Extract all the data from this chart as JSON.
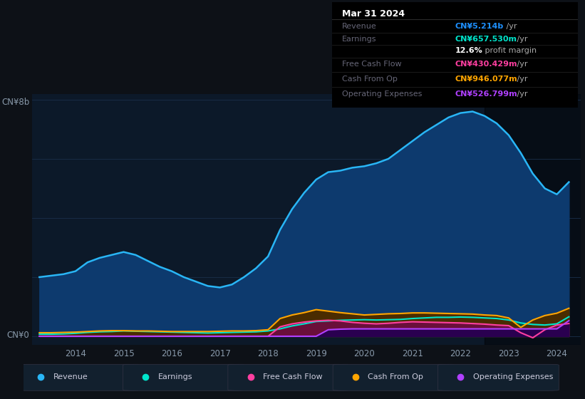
{
  "bg_color": "#0d1117",
  "plot_bg_color": "#0c1929",
  "grid_color": "#1a2f4a",
  "ylabel_text": "CN¥8b",
  "y0_label": "CN¥0",
  "info_box": {
    "title": "Mar 31 2024",
    "rows": [
      {
        "label": "Revenue",
        "value": "CN¥5.214b",
        "suffix": " /yr",
        "value_color": "#1e90ff"
      },
      {
        "label": "Earnings",
        "value": "CN¥657.530m",
        "suffix": " /yr",
        "value_color": "#00e5cc"
      },
      {
        "label": "",
        "value": "12.6%",
        "suffix": " profit margin",
        "value_color": "#ffffff"
      },
      {
        "label": "Free Cash Flow",
        "value": "CN¥430.429m",
        "suffix": " /yr",
        "value_color": "#ff3fa0"
      },
      {
        "label": "Cash From Op",
        "value": "CN¥946.077m",
        "suffix": " /yr",
        "value_color": "#ffa500"
      },
      {
        "label": "Operating Expenses",
        "value": "CN¥526.799m",
        "suffix": " /yr",
        "value_color": "#b040ff"
      }
    ]
  },
  "years": [
    2013.25,
    2013.5,
    2013.75,
    2014.0,
    2014.25,
    2014.5,
    2014.75,
    2015.0,
    2015.25,
    2015.5,
    2015.75,
    2016.0,
    2016.25,
    2016.5,
    2016.75,
    2017.0,
    2017.25,
    2017.5,
    2017.75,
    2018.0,
    2018.25,
    2018.5,
    2018.75,
    2019.0,
    2019.25,
    2019.5,
    2019.75,
    2020.0,
    2020.25,
    2020.5,
    2020.75,
    2021.0,
    2021.25,
    2021.5,
    2021.75,
    2022.0,
    2022.25,
    2022.5,
    2022.75,
    2023.0,
    2023.25,
    2023.5,
    2023.75,
    2024.0,
    2024.25
  ],
  "revenue": [
    2.0,
    2.05,
    2.1,
    2.2,
    2.5,
    2.65,
    2.75,
    2.85,
    2.75,
    2.55,
    2.35,
    2.2,
    2.0,
    1.85,
    1.7,
    1.65,
    1.75,
    2.0,
    2.3,
    2.7,
    3.6,
    4.3,
    4.85,
    5.3,
    5.55,
    5.6,
    5.7,
    5.75,
    5.85,
    6.0,
    6.3,
    6.6,
    6.9,
    7.15,
    7.4,
    7.55,
    7.6,
    7.45,
    7.2,
    6.8,
    6.2,
    5.5,
    5.0,
    4.8,
    5.214
  ],
  "earnings": [
    0.07,
    0.07,
    0.08,
    0.1,
    0.13,
    0.15,
    0.16,
    0.18,
    0.17,
    0.16,
    0.15,
    0.14,
    0.13,
    0.12,
    0.11,
    0.12,
    0.13,
    0.14,
    0.15,
    0.18,
    0.25,
    0.35,
    0.42,
    0.5,
    0.52,
    0.54,
    0.55,
    0.56,
    0.55,
    0.56,
    0.57,
    0.6,
    0.62,
    0.64,
    0.64,
    0.65,
    0.64,
    0.62,
    0.6,
    0.55,
    0.45,
    0.4,
    0.38,
    0.42,
    0.6576
  ],
  "free_cash_flow": [
    0.0,
    0.0,
    0.0,
    0.0,
    0.0,
    0.0,
    0.0,
    0.0,
    0.0,
    0.0,
    0.0,
    0.0,
    0.0,
    0.0,
    0.0,
    0.0,
    0.0,
    0.0,
    0.0,
    0.0,
    0.32,
    0.42,
    0.48,
    0.52,
    0.54,
    0.52,
    0.47,
    0.44,
    0.42,
    0.44,
    0.47,
    0.49,
    0.48,
    0.47,
    0.46,
    0.45,
    0.43,
    0.41,
    0.38,
    0.36,
    0.12,
    -0.05,
    0.22,
    0.38,
    0.4304
  ],
  "cash_from_op": [
    0.12,
    0.12,
    0.13,
    0.14,
    0.16,
    0.18,
    0.19,
    0.19,
    0.18,
    0.18,
    0.17,
    0.16,
    0.16,
    0.16,
    0.16,
    0.17,
    0.18,
    0.18,
    0.19,
    0.22,
    0.6,
    0.72,
    0.8,
    0.9,
    0.85,
    0.8,
    0.76,
    0.72,
    0.74,
    0.76,
    0.77,
    0.79,
    0.79,
    0.78,
    0.77,
    0.76,
    0.75,
    0.72,
    0.7,
    0.62,
    0.3,
    0.55,
    0.7,
    0.78,
    0.9461
  ],
  "op_expenses": [
    0.0,
    0.0,
    0.0,
    0.0,
    0.0,
    0.0,
    0.0,
    0.0,
    0.0,
    0.0,
    0.0,
    0.0,
    0.0,
    0.0,
    0.0,
    0.0,
    0.0,
    0.0,
    0.0,
    0.0,
    0.0,
    0.0,
    0.0,
    0.0,
    0.22,
    0.24,
    0.25,
    0.25,
    0.25,
    0.25,
    0.25,
    0.25,
    0.25,
    0.25,
    0.25,
    0.25,
    0.25,
    0.25,
    0.25,
    0.25,
    0.25,
    0.25,
    0.25,
    0.25,
    0.5268
  ],
  "revenue_line_color": "#29b6f6",
  "revenue_fill_color": "#0d3a6e",
  "earnings_line_color": "#00e5cc",
  "earnings_fill_color": "#004d40",
  "fcf_line_color": "#ff3fa0",
  "fcf_fill_color": "#6a0f3a",
  "cashop_line_color": "#ffa500",
  "cashop_fill_color": "#4a2c00",
  "opex_line_color": "#b040ff",
  "opex_fill_color": "#2a0050",
  "legend_items": [
    {
      "label": "Revenue",
      "color": "#29b6f6"
    },
    {
      "label": "Earnings",
      "color": "#00e5cc"
    },
    {
      "label": "Free Cash Flow",
      "color": "#ff3fa0"
    },
    {
      "label": "Cash From Op",
      "color": "#ffa500"
    },
    {
      "label": "Operating Expenses",
      "color": "#b040ff"
    }
  ],
  "xlim": [
    2013.1,
    2024.5
  ],
  "ylim": [
    -0.3,
    8.2
  ],
  "xticks": [
    2014,
    2015,
    2016,
    2017,
    2018,
    2019,
    2020,
    2021,
    2022,
    2023,
    2024
  ],
  "highlight_x_start": 2022.5,
  "highlight_x_end": 2024.6,
  "dark_overlay_alpha": 0.45
}
